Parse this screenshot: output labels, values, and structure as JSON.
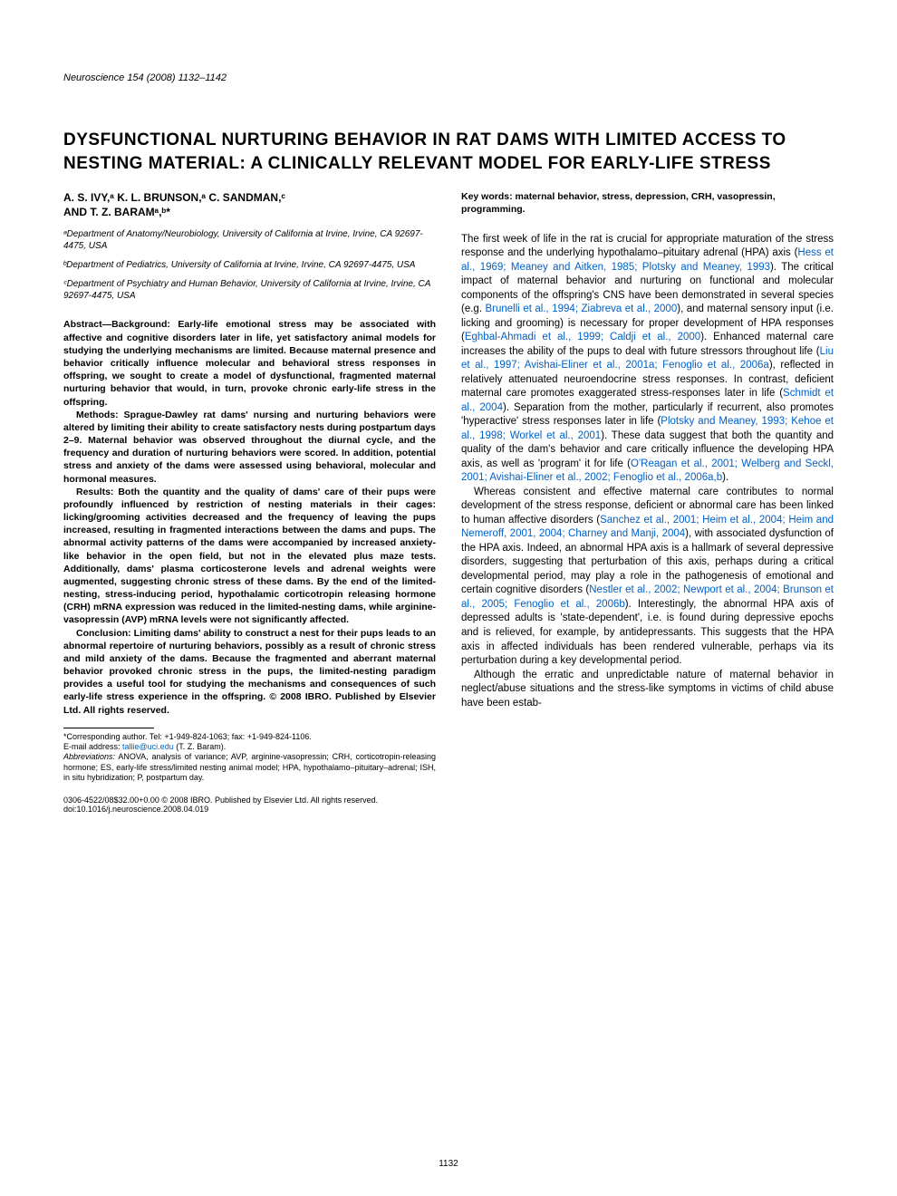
{
  "journal_ref": "Neuroscience 154 (2008) 1132–1142",
  "title": "DYSFUNCTIONAL NURTURING BEHAVIOR IN RAT DAMS WITH LIMITED ACCESS TO NESTING MATERIAL: A CLINICALLY RELEVANT MODEL FOR EARLY-LIFE STRESS",
  "authors_line1": "A. S. IVY,ᵃ K. L. BRUNSON,ᵃ C. SANDMAN,ᶜ",
  "authors_line2": "AND T. Z. BARAMᵃ,ᵇ*",
  "affil_a": "ᵃDepartment of Anatomy/Neurobiology, University of California at Irvine, Irvine, CA 92697-4475, USA",
  "affil_b": "ᵇDepartment of Pediatrics, University of California at Irvine, Irvine, CA 92697-4475, USA",
  "affil_c": "ᶜDepartment of Psychiatry and Human Behavior, University of California at Irvine, Irvine, CA 92697-4475, USA",
  "abstract": {
    "p1": "Abstract—Background: Early-life emotional stress may be associated with affective and cognitive disorders later in life, yet satisfactory animal models for studying the underlying mechanisms are limited. Because maternal presence and behavior critically influence molecular and behavioral stress responses in offspring, we sought to create a model of dysfunctional, fragmented maternal nurturing behavior that would, in turn, provoke chronic early-life stress in the offspring.",
    "p2": "Methods: Sprague-Dawley rat dams' nursing and nurturing behaviors were altered by limiting their ability to create satisfactory nests during postpartum days 2–9. Maternal behavior was observed throughout the diurnal cycle, and the frequency and duration of nurturing behaviors were scored. In addition, potential stress and anxiety of the dams were assessed using behavioral, molecular and hormonal measures.",
    "p3": "Results: Both the quantity and the quality of dams' care of their pups were profoundly influenced by restriction of nesting materials in their cages: licking/grooming activities decreased and the frequency of leaving the pups increased, resulting in fragmented interactions between the dams and pups. The abnormal activity patterns of the dams were accompanied by increased anxiety-like behavior in the open field, but not in the elevated plus maze tests. Additionally, dams' plasma corticosterone levels and adrenal weights were augmented, suggesting chronic stress of these dams. By the end of the limited-nesting, stress-inducing period, hypothalamic corticotropin releasing hormone (CRH) mRNA expression was reduced in the limited-nesting dams, while arginine-vasopressin (AVP) mRNA levels were not significantly affected.",
    "p4": "Conclusion: Limiting dams' ability to construct a nest for their pups leads to an abnormal repertoire of nurturing behaviors, possibly as a result of chronic stress and mild anxiety of the dams. Because the fragmented and aberrant maternal behavior provoked chronic stress in the pups, the limited-nesting paradigm provides a useful tool for studying the mechanisms and consequences of such early-life stress experience in the offspring. © 2008 IBRO. Published by Elsevier Ltd. All rights reserved."
  },
  "footnote": {
    "corr": "*Corresponding author. Tel: +1-949-824-1063; fax: +1-949-824-1106.",
    "email_label": "E-mail address: ",
    "email": "tallie@uci.edu",
    "email_tail": " (T. Z. Baram).",
    "abbrev_label": "Abbreviations:",
    "abbrev": " ANOVA, analysis of variance; AVP, arginine-vasopressin; CRH, corticotropin-releasing hormone; ES, early-life stress/limited nesting animal model; HPA, hypothalamo–pituitary–adrenal; ISH, in situ hybridization; P, postpartum day."
  },
  "keywords": "Key words: maternal behavior, stress, depression, CRH, vasopressin, programming.",
  "body": {
    "p1_pre": "The first week of life in the rat is crucial for appropriate maturation of the stress response and the underlying hypothalamo–pituitary adrenal (HPA) axis (",
    "p1_ref1": "Hess et al., 1969; Meaney and Aitken, 1985; Plotsky and Meaney, 1993",
    "p1_mid1": "). The critical impact of maternal behavior and nurturing on functional and molecular components of the offspring's CNS have been demonstrated in several species (e.g. ",
    "p1_ref2": "Brunelli et al., 1994; Ziabreva et al., 2000",
    "p1_mid2": "), and maternal sensory input (i.e. licking and grooming) is necessary for proper development of HPA responses (",
    "p1_ref3": "Eghbal-Ahmadi et al., 1999; Caldji et al., 2000",
    "p1_mid3": "). Enhanced maternal care increases the ability of the pups to deal with future stressors throughout life (",
    "p1_ref4": "Liu et al., 1997; Avishai-Eliner et al., 2001a; Fenoglio et al., 2006a",
    "p1_mid4": "), reflected in relatively attenuated neuroendocrine stress responses. In contrast, deficient maternal care promotes exaggerated stress-responses later in life (",
    "p1_ref5": "Schmidt et al., 2004",
    "p1_mid5": "). Separation from the mother, particularly if recurrent, also promotes 'hyperactive' stress responses later in life (",
    "p1_ref6": "Plotsky and Meaney, 1993; Kehoe et al., 1998; Workel et al., 2001",
    "p1_mid6": "). These data suggest that both the quantity and quality of the dam's behavior and care critically influence the developing HPA axis, as well as 'program' it for life (",
    "p1_ref7": "O'Reagan et al., 2001; Welberg and Seckl, 2001; Avishai-Eliner et al., 2002; Fenoglio et al., 2006a,b",
    "p1_post": ").",
    "p2_pre": "Whereas consistent and effective maternal care contributes to normal development of the stress response, deficient or abnormal care has been linked to human affective disorders (",
    "p2_ref1": "Sanchez et al., 2001; Heim et al., 2004; Heim and Nemeroff, 2001, 2004; Charney and Manji, 2004",
    "p2_mid1": "), with associated dysfunction of the HPA axis. Indeed, an abnormal HPA axis is a hallmark of several depressive disorders, suggesting that perturbation of this axis, perhaps during a critical developmental period, may play a role in the pathogenesis of emotional and certain cognitive disorders (",
    "p2_ref2": "Nestler et al., 2002; Newport et al., 2004; Brunson et al., 2005; Fenoglio et al., 2006b",
    "p2_post": "). Interestingly, the abnormal HPA axis of depressed adults is 'state-dependent', i.e. is found during depressive epochs and is relieved, for example, by antidepressants. This suggests that the HPA axis in affected individuals has been rendered vulnerable, perhaps via its perturbation during a key developmental period.",
    "p3": "Although the erratic and unpredictable nature of maternal behavior in neglect/abuse situations and the stress-like symptoms in victims of child abuse have been estab-"
  },
  "copy": "0306-4522/08$32.00+0.00 © 2008 IBRO. Published by Elsevier Ltd. All rights reserved.",
  "doi": "doi:10.1016/j.neuroscience.2008.04.019",
  "page_num": "1132",
  "colors": {
    "link": "#0060c8",
    "text": "#000000",
    "bg": "#ffffff"
  }
}
